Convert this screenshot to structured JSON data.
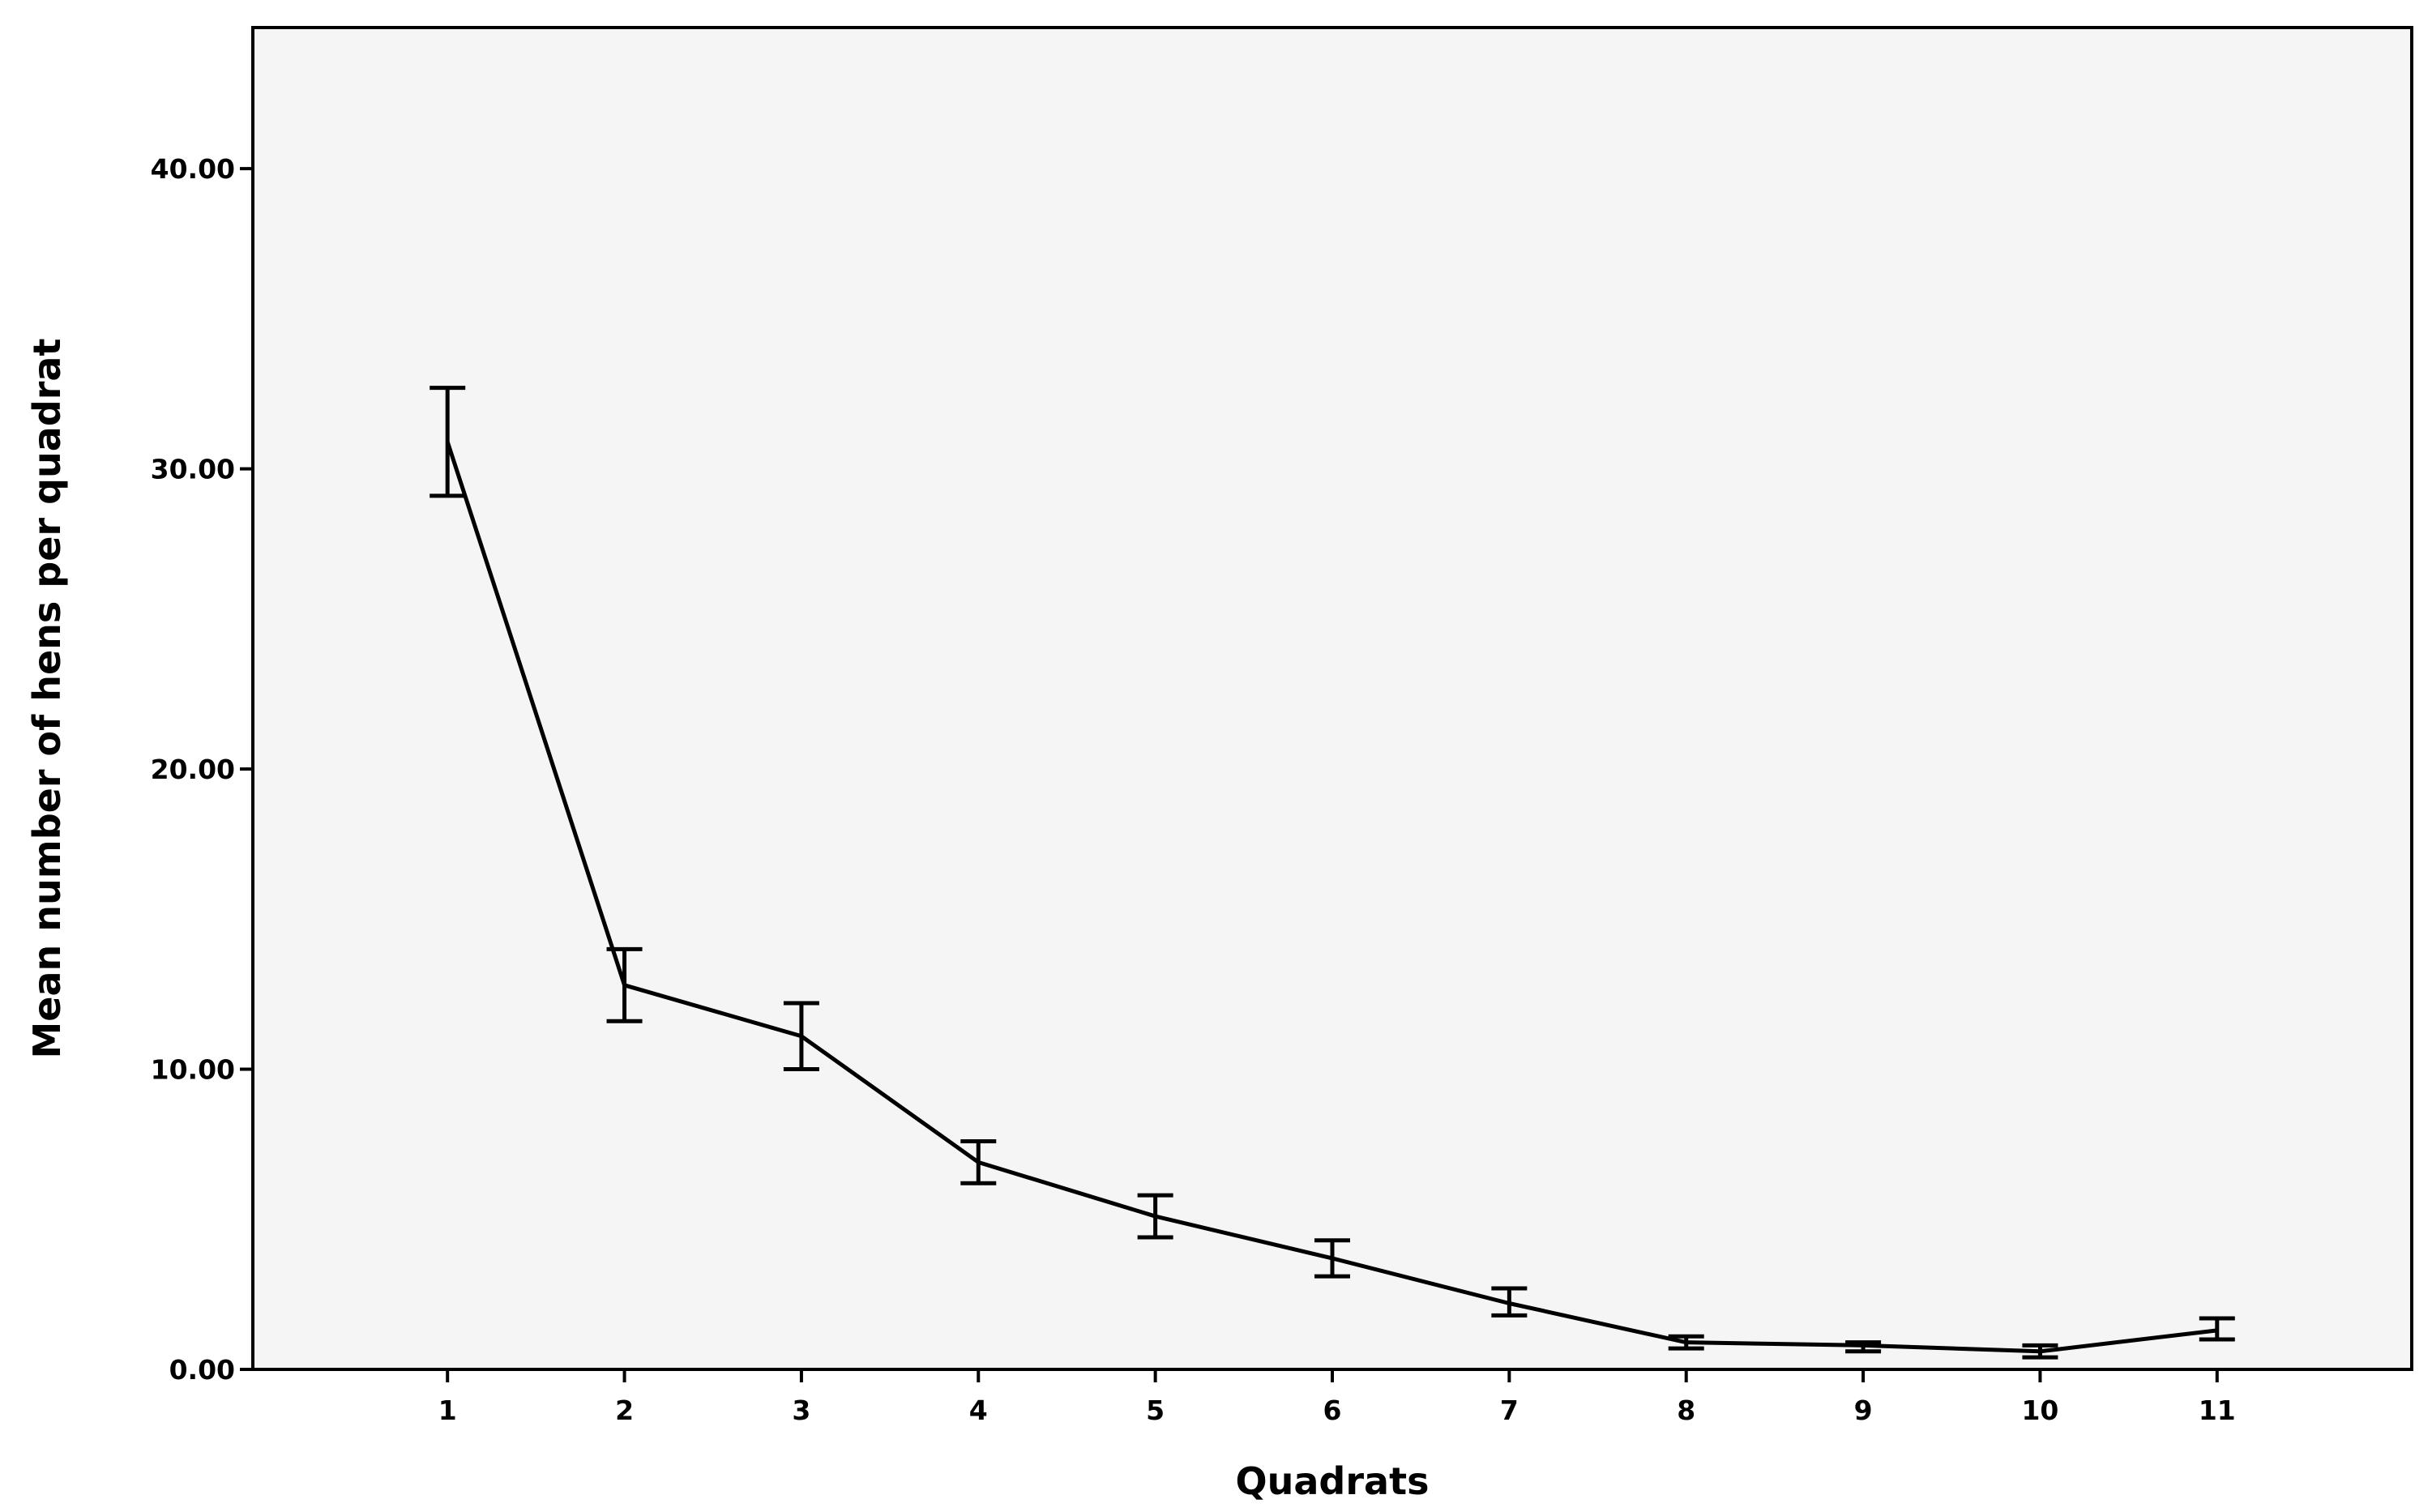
{
  "chart_data": {
    "type": "line",
    "title": "",
    "xlabel": "Quadrats",
    "ylabel": "Mean number of hens per quadrat",
    "x": [
      1,
      2,
      3,
      4,
      5,
      6,
      7,
      8,
      9,
      10,
      11
    ],
    "x_tick_labels": [
      "1",
      "2",
      "3",
      "4",
      "5",
      "6",
      "7",
      "8",
      "9",
      "10",
      "11"
    ],
    "y_tick_labels": [
      "0.00",
      "10.00",
      "20.00",
      "30.00",
      "40.00"
    ],
    "y_ticks": [
      0,
      10,
      20,
      30,
      40
    ],
    "ylim": [
      0,
      44.7
    ],
    "xlim": [
      -0.1,
      12.1
    ],
    "grid": false,
    "series": [
      {
        "values": [
          30.9,
          12.8,
          11.1,
          6.9,
          5.1,
          3.7,
          2.2,
          0.9,
          0.8,
          0.6,
          1.3
        ],
        "error_low": [
          29.1,
          11.6,
          10.0,
          6.2,
          4.4,
          3.1,
          1.8,
          0.7,
          0.6,
          0.4,
          1.0
        ],
        "error_high": [
          32.7,
          14.0,
          12.2,
          7.6,
          5.8,
          4.3,
          2.7,
          1.1,
          0.9,
          0.8,
          1.7
        ]
      }
    ],
    "colors": {
      "plot_background": "#f5f5f5",
      "line": "#000000"
    }
  }
}
